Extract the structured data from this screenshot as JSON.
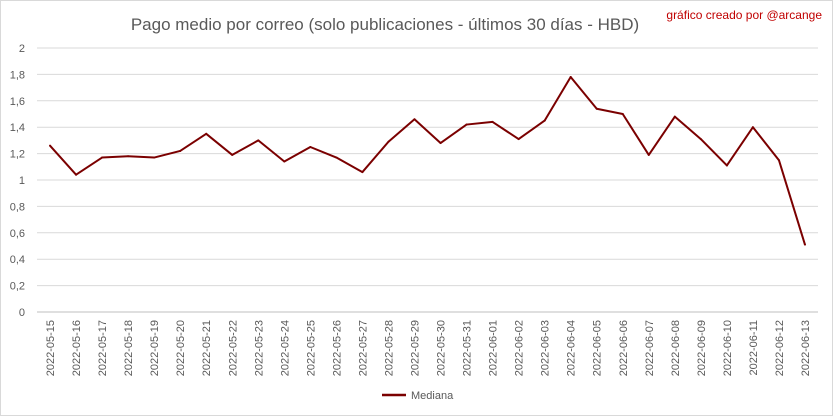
{
  "chart_data": {
    "type": "line",
    "title": "Pago medio por correo (solo publicaciones - últimos 30 días - HBD)",
    "credit": "gráfico creado por @arcange",
    "xlabel": "",
    "ylabel": "",
    "ylim": [
      0,
      2
    ],
    "ytick_step": 0.2,
    "yticks": [
      "0",
      "0,2",
      "0,4",
      "0,6",
      "0,8",
      "1",
      "1,2",
      "1,4",
      "1,6",
      "1,8",
      "2"
    ],
    "grid": true,
    "legend_position": "bottom",
    "line_color": "#7b0000",
    "categories": [
      "2022-05-15",
      "2022-05-16",
      "2022-05-17",
      "2022-05-18",
      "2022-05-19",
      "2022-05-20",
      "2022-05-21",
      "2022-05-22",
      "2022-05-23",
      "2022-05-24",
      "2022-05-25",
      "2022-05-26",
      "2022-05-27",
      "2022-05-28",
      "2022-05-29",
      "2022-05-30",
      "2022-05-31",
      "2022-06-01",
      "2022-06-02",
      "2022-06-03",
      "2022-06-04",
      "2022-06-05",
      "2022-06-06",
      "2022-06-07",
      "2022-06-08",
      "2022-06-09",
      "2022-06-10",
      "2022-06-11",
      "2022-06-12",
      "2022-06-13"
    ],
    "series": [
      {
        "name": "Mediana",
        "values": [
          1.26,
          1.04,
          1.17,
          1.18,
          1.17,
          1.22,
          1.35,
          1.19,
          1.3,
          1.14,
          1.25,
          1.17,
          1.06,
          1.29,
          1.46,
          1.28,
          1.42,
          1.44,
          1.31,
          1.45,
          1.78,
          1.54,
          1.5,
          1.19,
          1.48,
          1.31,
          1.11,
          1.4,
          1.15,
          0.51
        ]
      }
    ]
  }
}
